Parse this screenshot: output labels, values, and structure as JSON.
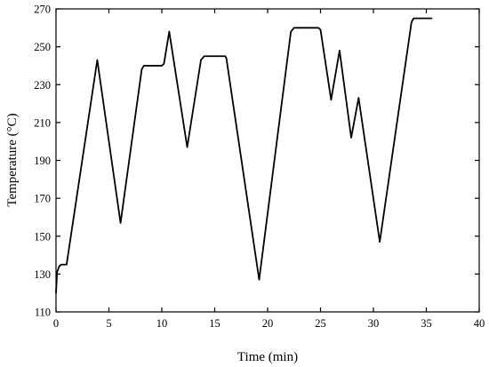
{
  "chart_data": {
    "type": "line",
    "title": "",
    "xlabel": "Time (min)",
    "ylabel": "Temperature (°C)",
    "xlim": [
      0,
      40
    ],
    "ylim": [
      110,
      270
    ],
    "xticks": [
      0,
      5,
      10,
      15,
      20,
      25,
      30,
      35,
      40
    ],
    "yticks": [
      110,
      130,
      150,
      170,
      190,
      210,
      230,
      250,
      270
    ],
    "grid": false,
    "legend": "none",
    "line_color": "#000000",
    "series": [
      {
        "x": [
          0,
          0.1,
          0.3,
          0.5,
          1.0,
          3.9,
          6.1,
          8.1,
          8.3,
          8.6,
          10.0,
          10.2,
          10.7,
          12.4,
          13.7,
          14.0,
          16.0,
          16.1,
          19.2,
          22.2,
          22.5,
          24.8,
          25.0,
          26.0,
          26.8,
          27.9,
          28.6,
          30.6,
          33.6,
          33.8,
          35.5
        ],
        "y": [
          120,
          131,
          134,
          135,
          135,
          243,
          157,
          238,
          240,
          240,
          240,
          241,
          258,
          197,
          243,
          245,
          245,
          244,
          127,
          258,
          260,
          260,
          259,
          222,
          248,
          202,
          223,
          147,
          263,
          265,
          265
        ]
      }
    ]
  }
}
